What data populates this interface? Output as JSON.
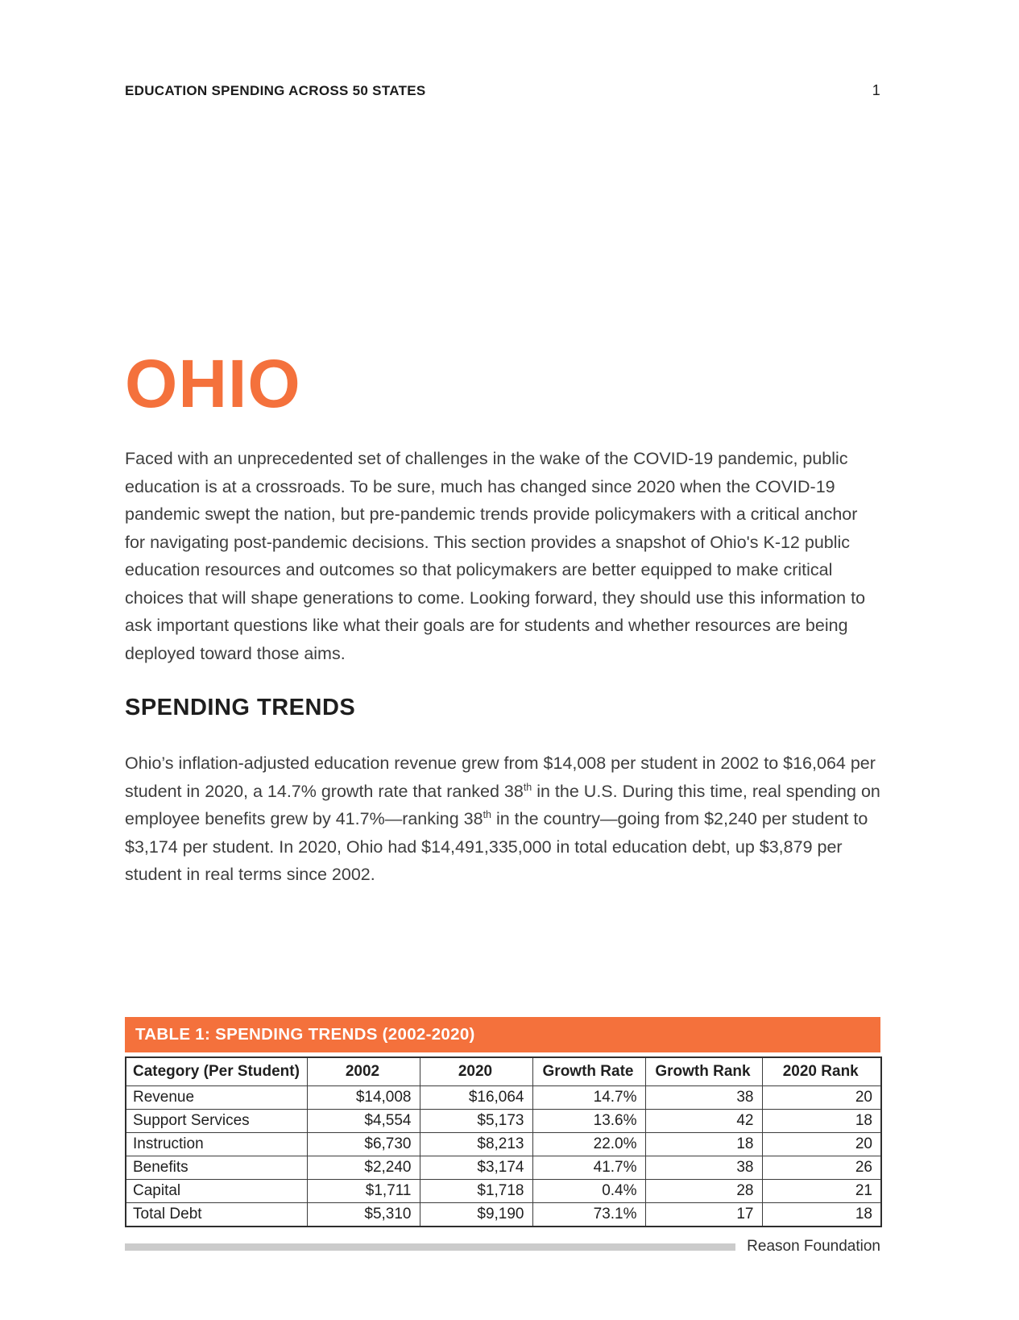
{
  "colors": {
    "accent_orange": "#F4713C",
    "footer_bar_gray": "#CBCBCB",
    "body_text": "#3E3E3E"
  },
  "header": {
    "title": "EDUCATION SPENDING ACROSS 50 STATES",
    "page_number": "1"
  },
  "state_title": "OHIO",
  "intro_paragraph": "Faced with an unprecedented set of challenges in the wake of the COVID-19 pandemic, public education is at a crossroads. To be sure, much has changed since 2020 when the COVID-19 pandemic swept the nation, but pre-pandemic trends provide policymakers with a critical anchor for navigating post-pandemic decisions. This section provides a snapshot of Ohio's K-12 public education resources and outcomes so that policymakers are better equipped to make critical choices that will shape generations to come. Looking forward, they should use this information to ask important questions like what their goals are for students and whether resources are being deployed toward those aims.",
  "spending_trends": {
    "heading": "SPENDING TRENDS",
    "paragraph_segments": [
      {
        "t": "Ohio’s inflation-adjusted education revenue grew from $14,008 per student in 2002 to $16,064 per student in 2020, a 14.7% growth rate that ranked 38"
      },
      {
        "t": "th",
        "sup": true
      },
      {
        "t": " in the U.S. During this time, real spending on employee benefits grew by 41.7%—ranking 38"
      },
      {
        "t": "th",
        "sup": true
      },
      {
        "t": " in the country—going from $2,240 per student to $3,174 per student. In 2020, Ohio had $14,491,335,000 in total education debt, up $3,879 per student in real terms since 2002."
      }
    ]
  },
  "table1": {
    "title": "TABLE 1: SPENDING TRENDS (2002-2020)",
    "columns": [
      "Category (Per Student)",
      "2002",
      "2020",
      "Growth Rate",
      "Growth Rank",
      "2020 Rank"
    ],
    "rows": [
      {
        "category": "Revenue",
        "y2002": "$14,008",
        "y2020": "$16,064",
        "growth_rate": "14.7%",
        "growth_rank": "38",
        "rank_2020": "20"
      },
      {
        "category": "Support Services",
        "y2002": "$4,554",
        "y2020": "$5,173",
        "growth_rate": "13.6%",
        "growth_rank": "42",
        "rank_2020": "18"
      },
      {
        "category": "Instruction",
        "y2002": "$6,730",
        "y2020": "$8,213",
        "growth_rate": "22.0%",
        "growth_rank": "18",
        "rank_2020": "20"
      },
      {
        "category": "Benefits",
        "y2002": "$2,240",
        "y2020": "$3,174",
        "growth_rate": "41.7%",
        "growth_rank": "38",
        "rank_2020": "26"
      },
      {
        "category": "Capital",
        "y2002": "$1,711",
        "y2020": "$1,718",
        "growth_rate": "0.4%",
        "growth_rank": "28",
        "rank_2020": "21"
      },
      {
        "category": "Total Debt",
        "y2002": "$5,310",
        "y2020": "$9,190",
        "growth_rate": "73.1%",
        "growth_rank": "17",
        "rank_2020": "18"
      }
    ]
  },
  "footer": {
    "brand": "Reason Foundation"
  }
}
